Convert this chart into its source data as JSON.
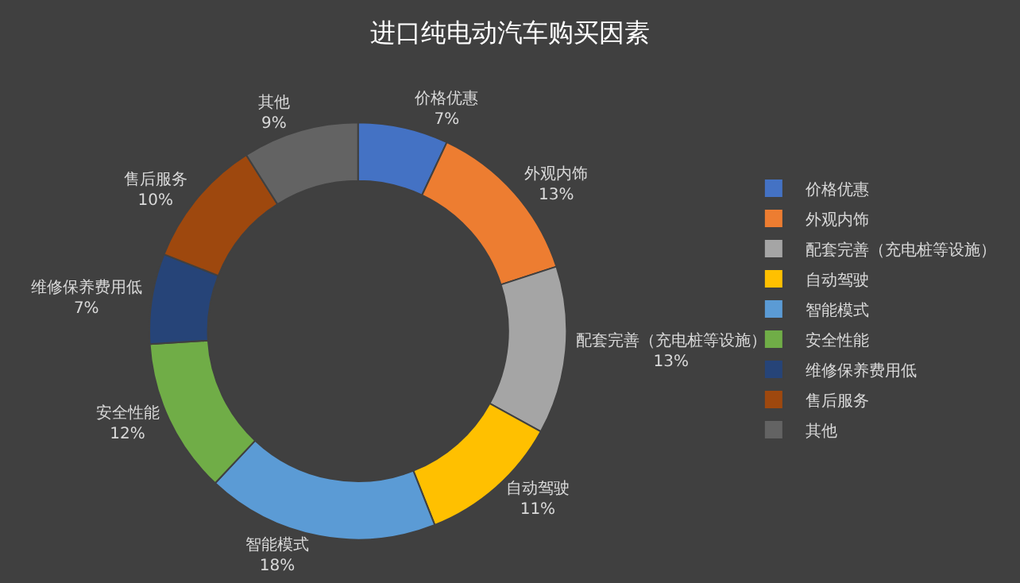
{
  "chart_data": {
    "type": "donut",
    "title": "进口纯电动汽车购买因素",
    "categories": [
      "价格优惠",
      "外观内饰",
      "配套完善（充电桩等设施）",
      "自动驾驶",
      "智能模式",
      "安全性能",
      "维修保养费用低",
      "售后服务",
      "其他"
    ],
    "values": [
      7,
      13,
      13,
      11,
      18,
      12,
      7,
      10,
      9
    ],
    "value_labels": [
      "7%",
      "13%",
      "13%",
      "11%",
      "18%",
      "12%",
      "7%",
      "10%",
      "9%"
    ],
    "colors": [
      "#4472c4",
      "#ed7d31",
      "#a5a5a5",
      "#ffc000",
      "#5b9bd5",
      "#70ad47",
      "#264478",
      "#9e480e",
      "#636363"
    ],
    "legend": "right"
  }
}
